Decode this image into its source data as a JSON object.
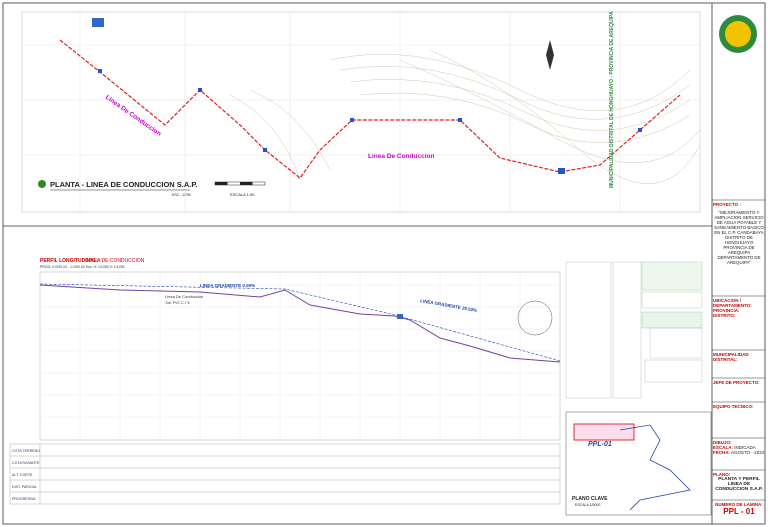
{
  "plan": {
    "title": "PLANTA - LINEA DE CONDUCCION S.A.P.",
    "scale": "ESC.: 1/750",
    "line_labels": [
      "Linea De Conduccion",
      "Linea De Conduccion"
    ],
    "bar_scale": "ESCALA 1:50"
  },
  "profile": {
    "title": "PERFIL LONGITUDINAL:",
    "subtitle": "LINEA DE CONDUCCION",
    "scale": "PROG: 0+000.00 - 1+300.00 Esc. H: 1/1250 V: 1/1250",
    "gradients": [
      "LINEA GRADIENTE 0.00%",
      "LINEA GRADIENTE 29.50%"
    ],
    "pipe": "Linea De Conduccion",
    "pipe_spec": "Tub. PVC C-7.5",
    "rows": [
      "COTA TERRENO",
      "COTA RASANTE",
      "ALT. CORTE",
      "DIST. PARCIAL",
      "PROGRESIVA"
    ]
  },
  "key_plan": {
    "title": "PLANO CLAVE",
    "scale": "ESCALA 1/5000",
    "label": "PPL-01"
  },
  "title_block": {
    "vertical": "MUNICIPALIDAD DISTRITAL DE HONGHUAYO - PROVINCIA DE AREQUIPA",
    "project_label": "PROYECTO :",
    "project": "\"MEJORAMIENTO Y AMPLIACION SERVICIO DE AGUA POTABLE Y SANEAMIENTO BASICO EN EL C.P. CANDABAYA DISTRITO DE HONGHUAYO PROVINCIA DE AREQUIPA DEPARTAMENTO DE AREQUIPA\"",
    "location_label": "UBICACION / DEPARTAMENTO:",
    "province_label": "PROVINCIA:",
    "district_label": "DISTRITO:",
    "municipality_label": "MUNICIPALIDAD DISTRITAL:",
    "chief_label": "JEFE DE PROYECTO:",
    "team_label": "EQUIPO TECNICO:",
    "drawing_label": "DIBUJO:",
    "scale_label": "ESCALA:",
    "scale": "INDICADA",
    "date_label": "FECHA:",
    "date": "AGOSTO - 2024",
    "sheet_label": "PLANO:",
    "sheet": "PLANTA Y PERFIL LINEA DE CONDUCCION S.A.P.",
    "number_label": "NUMERO DE LAMINA:",
    "number": "PPL - 01"
  }
}
